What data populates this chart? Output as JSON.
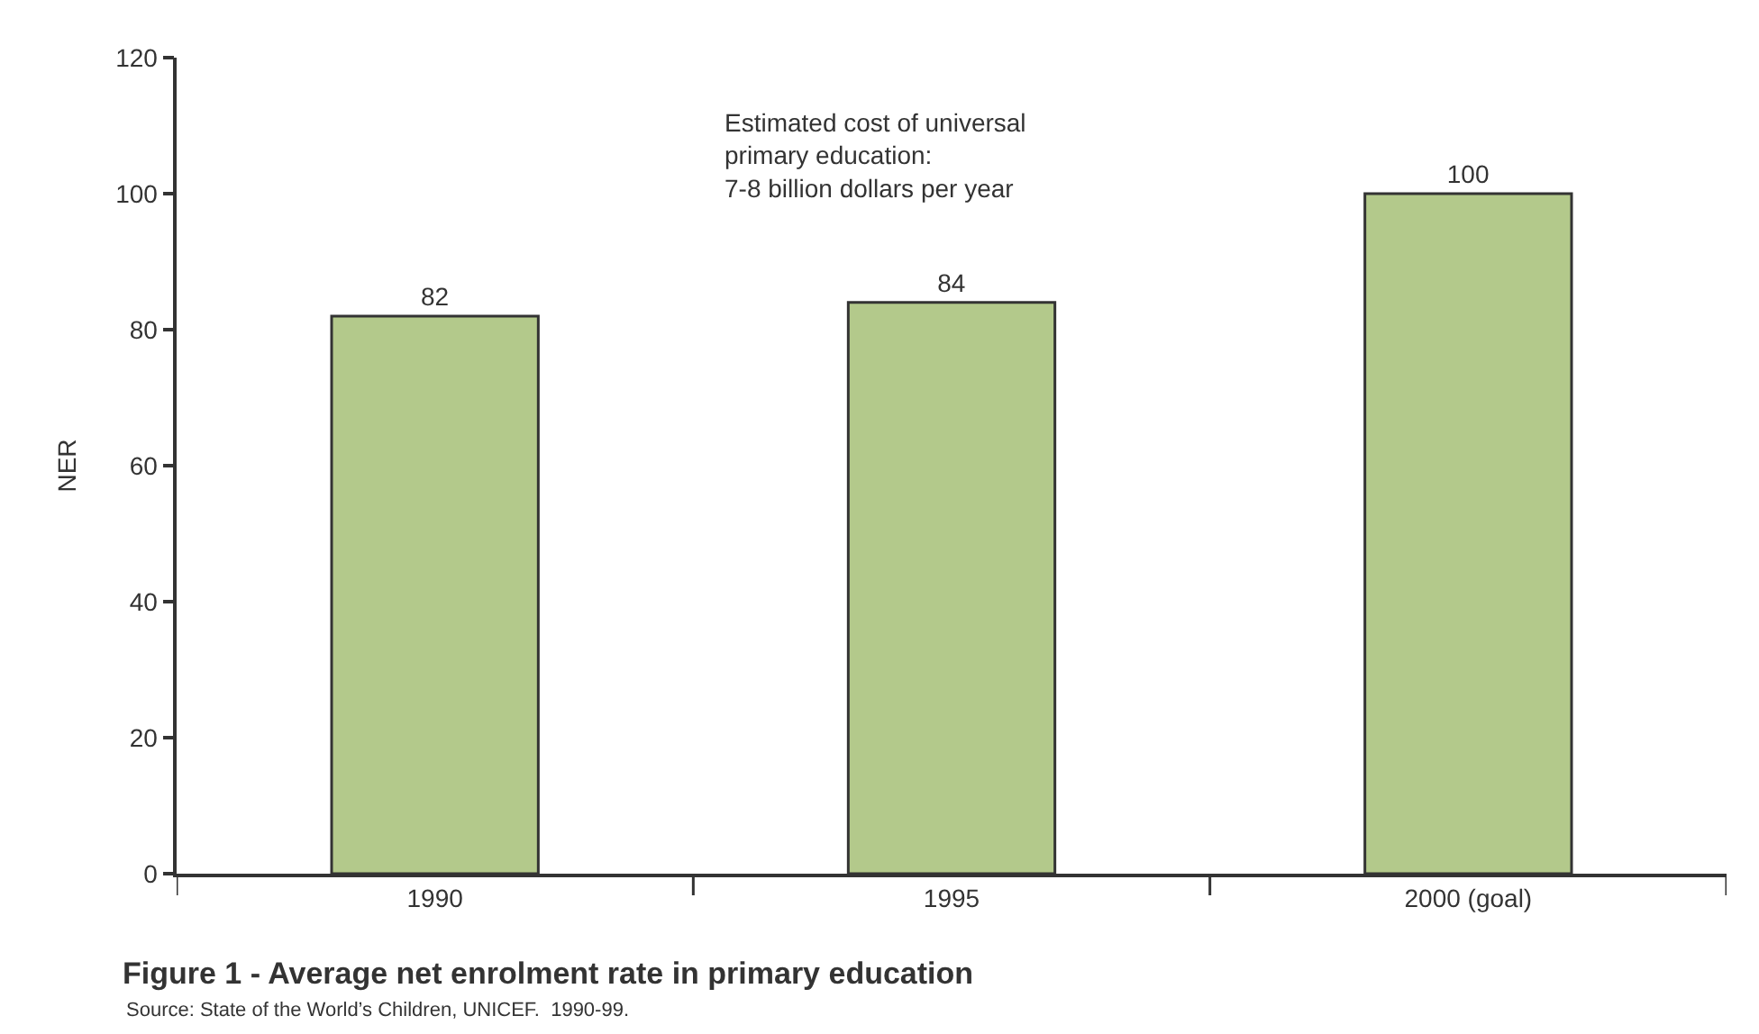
{
  "chart_data": {
    "type": "bar",
    "title": "Figure 1 - Average net enrolment rate in primary education",
    "ylabel": "NER",
    "categories": [
      "1990",
      "1995",
      "2000 (goal)"
    ],
    "values": [
      82,
      84,
      100
    ],
    "color": "#b3c98b",
    "data_labels": true,
    "ylim": [
      0,
      120
    ],
    "yticks": [
      0,
      20,
      40,
      60,
      80,
      100,
      120
    ],
    "grid": false,
    "annotations": [
      "Estimated cost of universal\nprimary education:\n7-8 billion dollars per year",
      "Source: State of the World’s Children, UNICEF.  1990-99."
    ]
  }
}
